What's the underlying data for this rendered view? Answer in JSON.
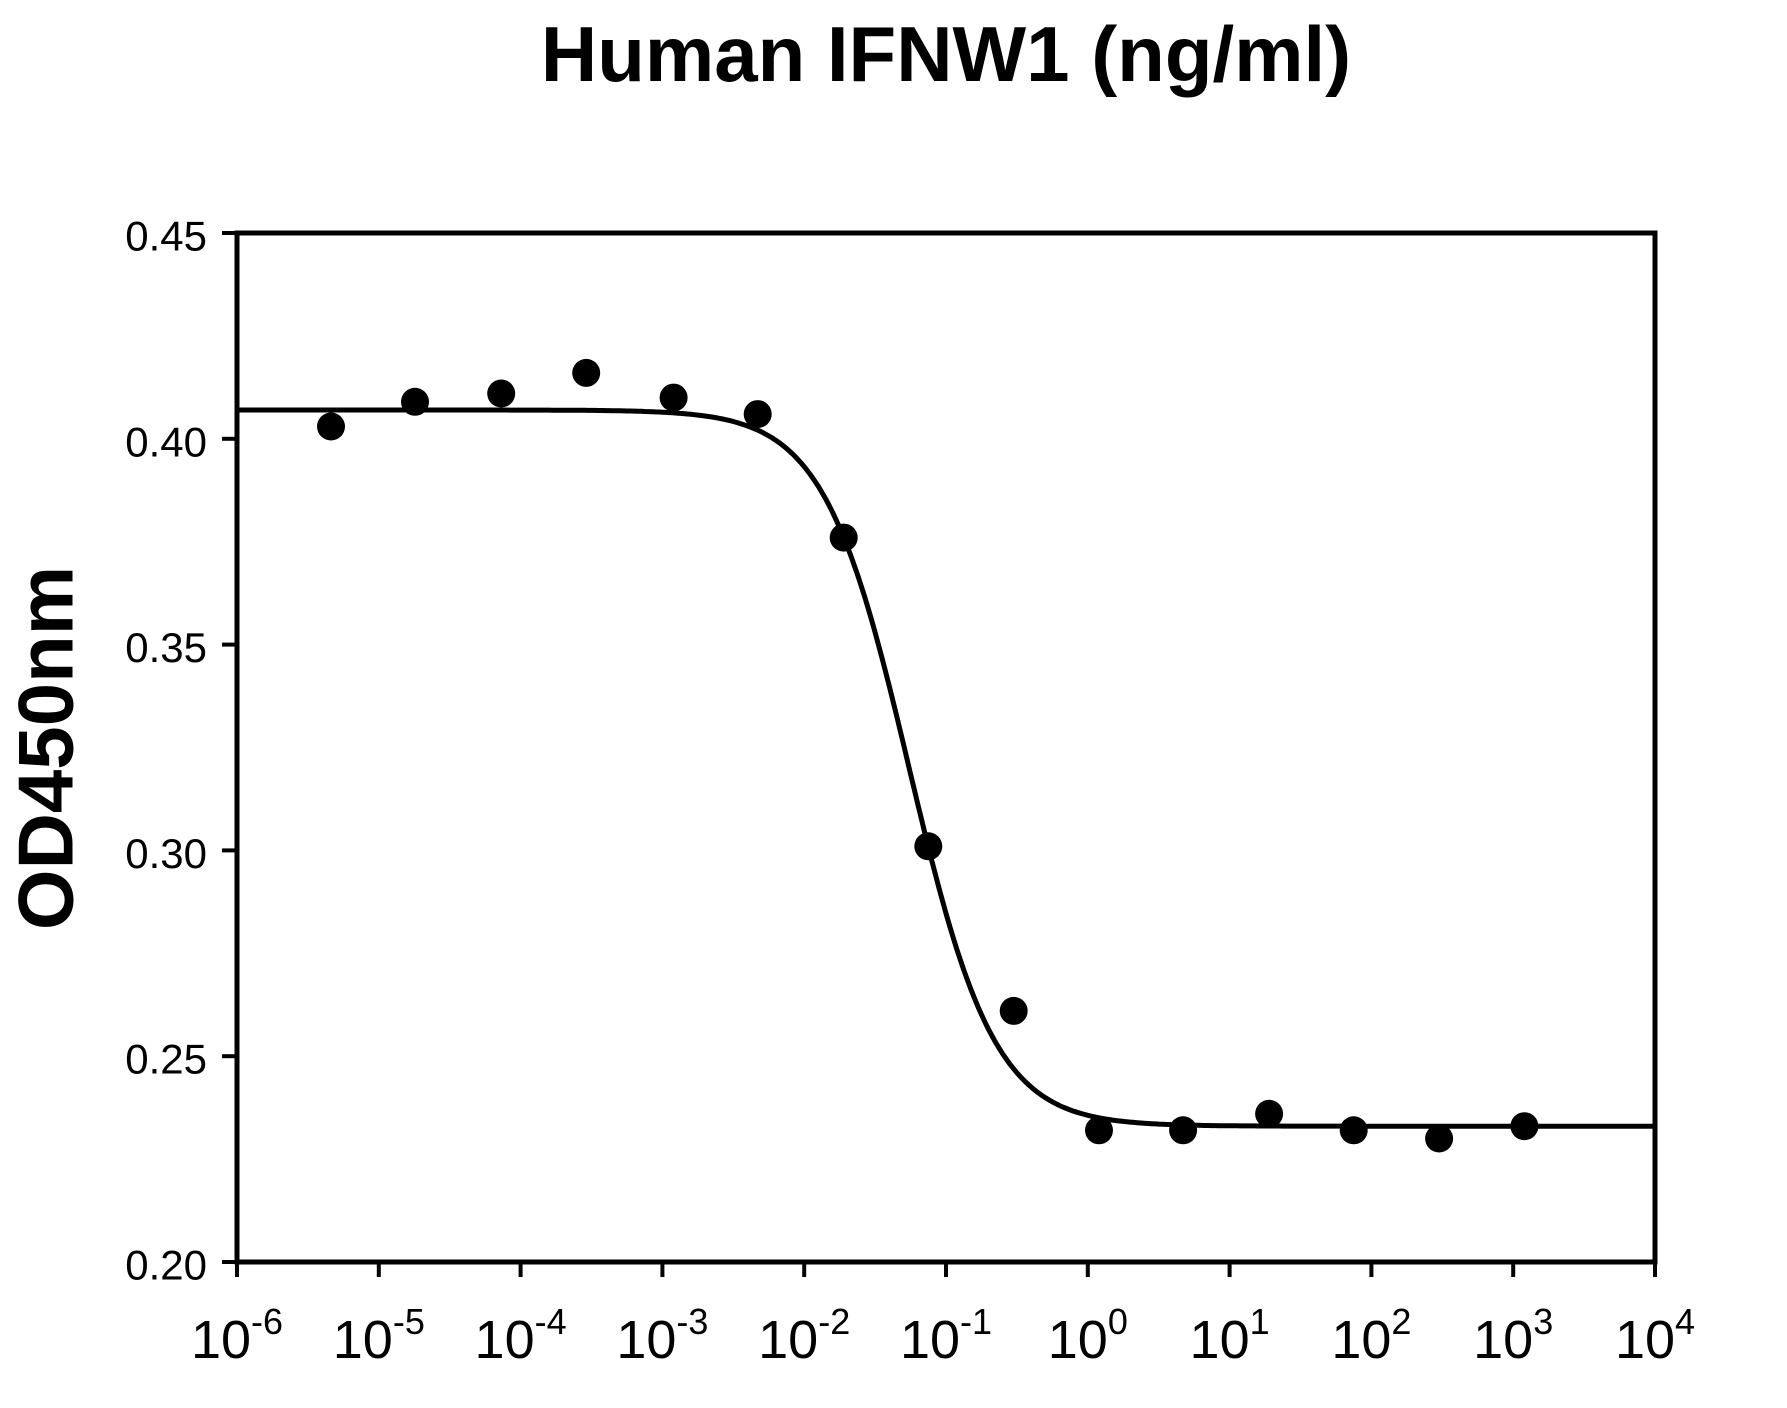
{
  "figure": {
    "background": "#ffffff",
    "foreground": "#000000"
  },
  "chart_data": {
    "type": "scatter",
    "title": "Human IFNW1 (ng/ml)",
    "ylabel": "OD450nm",
    "xlabel": "Human IFNW1 (ng/ml)",
    "x_scale": "log",
    "x_range_log": [
      -6,
      4
    ],
    "ylim": [
      0.2,
      0.45
    ],
    "grid": false,
    "legend": null,
    "marker_color": "#000000",
    "line_color": "#000000",
    "axis_color": "#000000",
    "x_tick_base": "10",
    "x_tick_exponents": [
      -6,
      -5,
      -4,
      -3,
      -2,
      -1,
      0,
      1,
      2,
      3,
      4
    ],
    "y_ticks": [
      {
        "label": "0.45",
        "value": 0.45
      },
      {
        "label": "0.40",
        "value": 0.4
      },
      {
        "label": "0.35",
        "value": 0.35
      },
      {
        "label": "0.30",
        "value": 0.3
      },
      {
        "label": "0.25",
        "value": 0.25
      },
      {
        "label": "0.20",
        "value": 0.2
      }
    ],
    "points": [
      {
        "x": 4.6e-06,
        "y": 0.403
      },
      {
        "x": 1.8e-05,
        "y": 0.409
      },
      {
        "x": 7.3e-05,
        "y": 0.411
      },
      {
        "x": 0.00029,
        "y": 0.416
      },
      {
        "x": 0.0012,
        "y": 0.41
      },
      {
        "x": 0.0047,
        "y": 0.406
      },
      {
        "x": 0.019,
        "y": 0.376
      },
      {
        "x": 0.075,
        "y": 0.301
      },
      {
        "x": 0.3,
        "y": 0.261
      },
      {
        "x": 1.2,
        "y": 0.232
      },
      {
        "x": 4.7,
        "y": 0.232
      },
      {
        "x": 19,
        "y": 0.236
      },
      {
        "x": 75,
        "y": 0.232
      },
      {
        "x": 300,
        "y": 0.23
      },
      {
        "x": 1200,
        "y": 0.233
      }
    ],
    "fit_curve": {
      "model": "4PL",
      "top": 0.407,
      "bottom": 0.233,
      "ec50": 0.055,
      "hill": 1.44
    }
  }
}
